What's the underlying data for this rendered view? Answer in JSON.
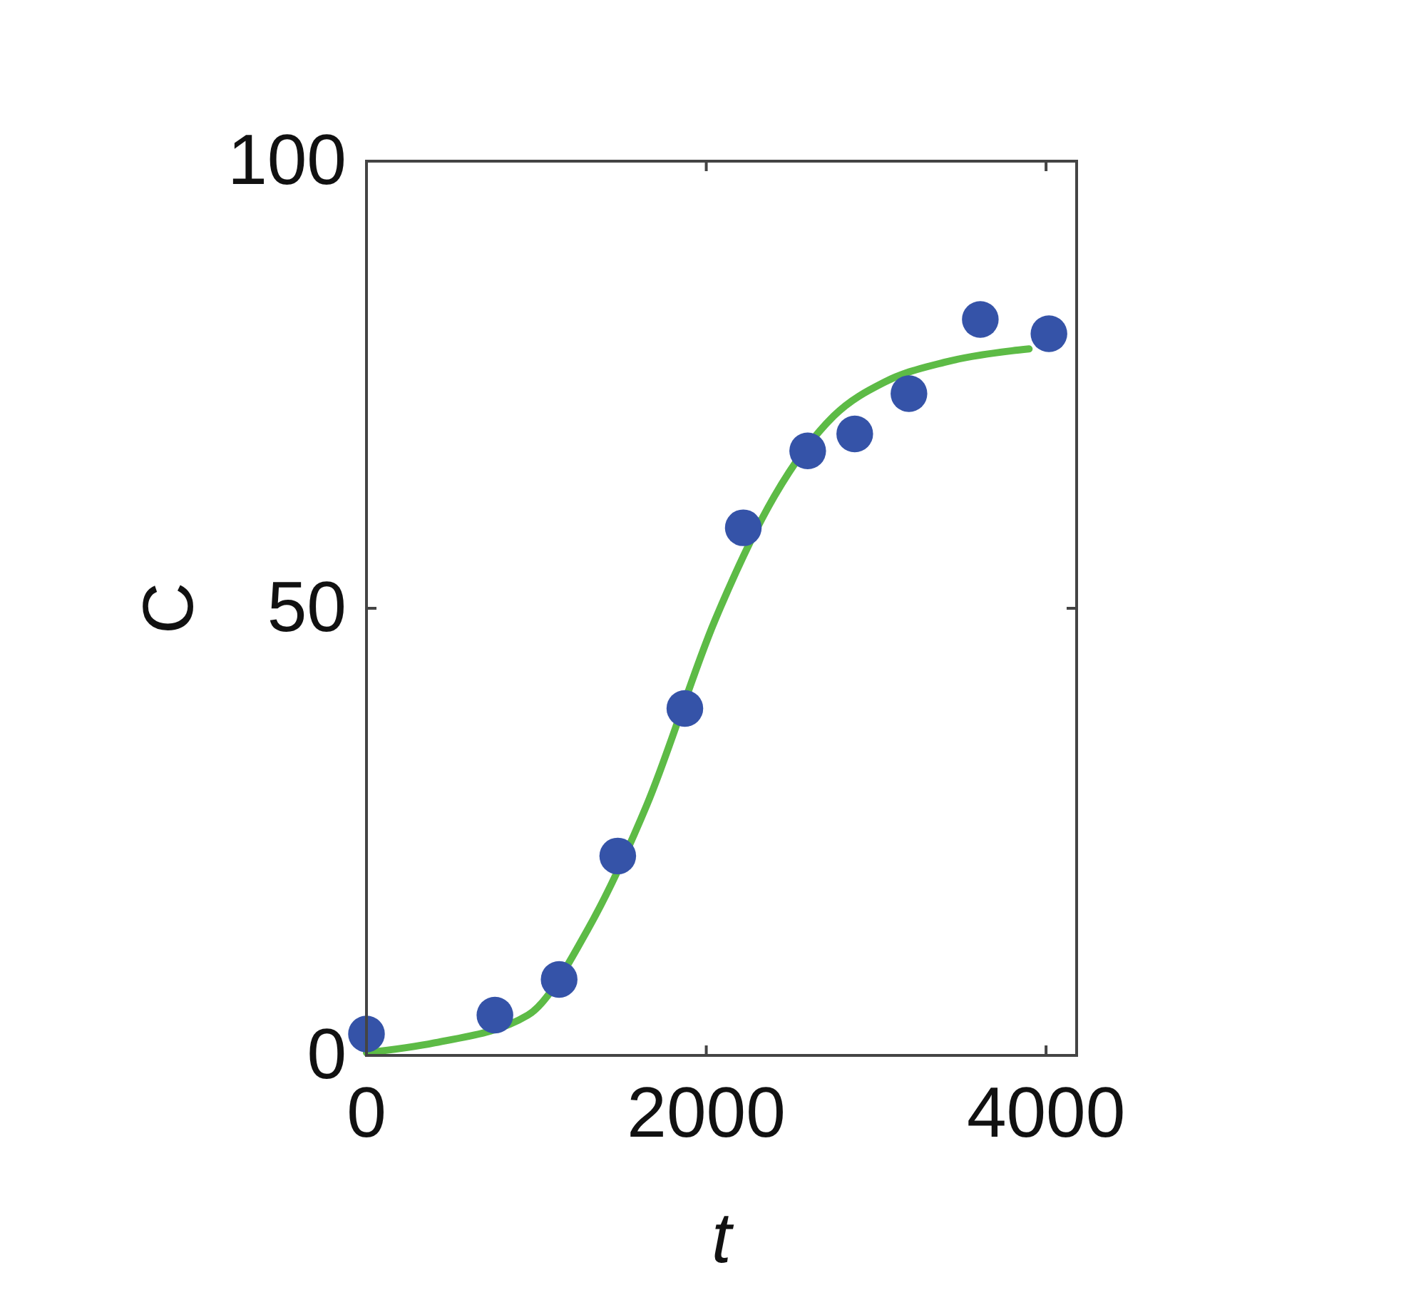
{
  "chart_data": {
    "type": "scatter",
    "xlabel": "t",
    "ylabel": "C",
    "xlim": [
      0,
      4180
    ],
    "ylim": [
      0,
      100
    ],
    "xticks": [
      0,
      2000,
      4000
    ],
    "yticks": [
      0,
      50,
      100
    ],
    "grid": false,
    "series": [
      {
        "type": "scatter",
        "color": "#3553a8",
        "marker": "circle",
        "x": [
          0,
          756,
          1134,
          1479,
          1874,
          2218,
          2597,
          2874,
          3193,
          3613,
          4017
        ],
        "values": [
          2.4,
          4.5,
          8.5,
          22.3,
          38.8,
          59,
          67.6,
          69.5,
          74,
          82.3,
          80.7
        ]
      },
      {
        "type": "line",
        "color": "#5dbb46",
        "marker": "none",
        "line_style": "solid",
        "x": [
          0,
          400,
          950,
          1300,
          1650,
          2050,
          2400,
          2750,
          3050,
          3400,
          3800,
          3900
        ],
        "values": [
          0.3,
          1.4,
          4.5,
          14,
          28,
          48.6,
          62.5,
          71.5,
          75.3,
          77.5,
          78.8,
          79
        ]
      }
    ]
  }
}
